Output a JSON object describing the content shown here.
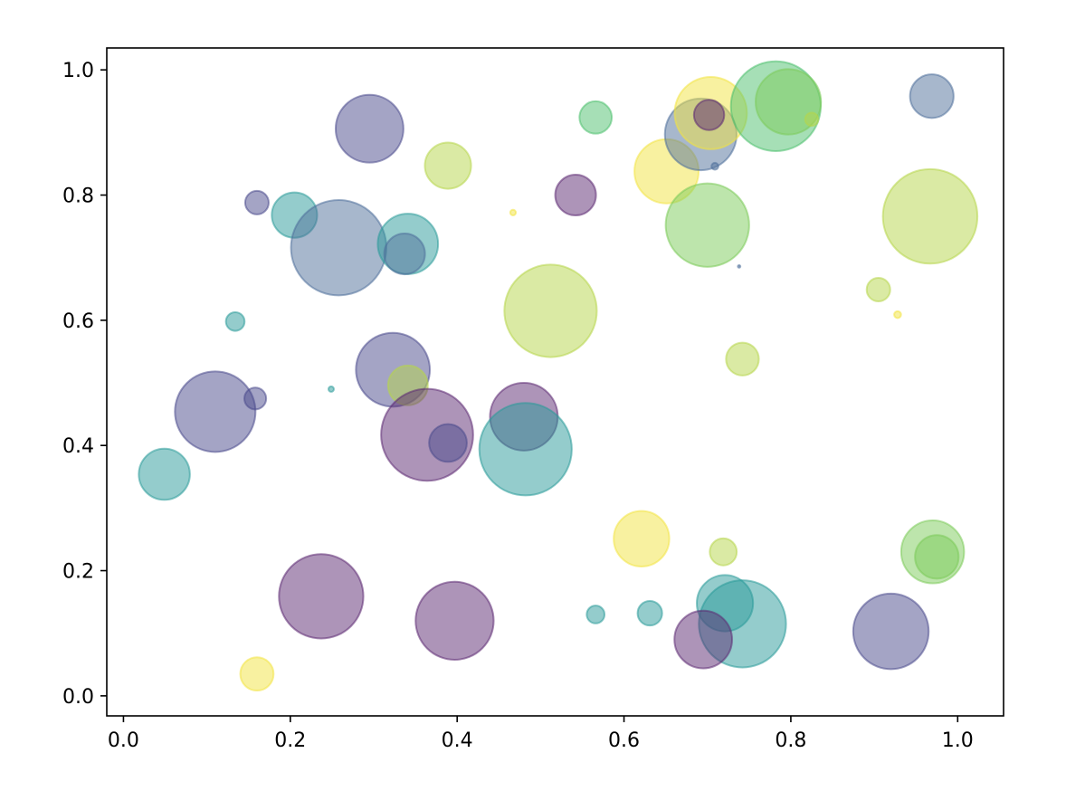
{
  "chart_data": {
    "type": "scatter",
    "xlim": [
      -0.02,
      1.055
    ],
    "ylim": [
      -0.032,
      1.035
    ],
    "x_ticks": [
      {
        "value": 0.0,
        "label": "0.0"
      },
      {
        "value": 0.2,
        "label": "0.2"
      },
      {
        "value": 0.4,
        "label": "0.4"
      },
      {
        "value": 0.6,
        "label": "0.6"
      },
      {
        "value": 0.8,
        "label": "0.8"
      },
      {
        "value": 1.0,
        "label": "1.0"
      }
    ],
    "y_ticks": [
      {
        "value": 0.0,
        "label": "0.0"
      },
      {
        "value": 0.2,
        "label": "0.2"
      },
      {
        "value": 0.4,
        "label": "0.4"
      },
      {
        "value": 0.6,
        "label": "0.6"
      },
      {
        "value": 0.8,
        "label": "0.8"
      },
      {
        "value": 1.0,
        "label": "1.0"
      }
    ],
    "grid": false,
    "marker_alpha": 0.5,
    "colormap": "viridis",
    "colors": {
      "purple": "#5c2a72",
      "indigo": "#4a4a8c",
      "slate": "#4f6f9a",
      "teal": "#2a9a99",
      "green": "#4dc06e",
      "lightgreen": "#7ccb5a",
      "lime": "#b6d64a",
      "yellow": "#f2e442"
    },
    "points": [
      {
        "x": 0.295,
        "y": 0.906,
        "size": 2900,
        "color": "indigo"
      },
      {
        "x": 0.16,
        "y": 0.788,
        "size": 350,
        "color": "indigo"
      },
      {
        "x": 0.205,
        "y": 0.768,
        "size": 1300,
        "color": "teal"
      },
      {
        "x": 0.258,
        "y": 0.716,
        "size": 5750,
        "color": "slate"
      },
      {
        "x": 0.341,
        "y": 0.722,
        "size": 2300,
        "color": "teal"
      },
      {
        "x": 0.337,
        "y": 0.706,
        "size": 1050,
        "color": "slate"
      },
      {
        "x": 0.134,
        "y": 0.598,
        "size": 220,
        "color": "teal"
      },
      {
        "x": 0.389,
        "y": 0.847,
        "size": 1350,
        "color": "lime"
      },
      {
        "x": 0.323,
        "y": 0.521,
        "size": 3450,
        "color": "indigo"
      },
      {
        "x": 0.341,
        "y": 0.496,
        "size": 1000,
        "color": "lime"
      },
      {
        "x": 0.11,
        "y": 0.454,
        "size": 4100,
        "color": "indigo"
      },
      {
        "x": 0.158,
        "y": 0.475,
        "size": 300,
        "color": "indigo"
      },
      {
        "x": 0.249,
        "y": 0.49,
        "size": 18,
        "color": "teal"
      },
      {
        "x": 0.364,
        "y": 0.417,
        "size": 5350,
        "color": "purple"
      },
      {
        "x": 0.389,
        "y": 0.404,
        "size": 900,
        "color": "indigo"
      },
      {
        "x": 0.049,
        "y": 0.354,
        "size": 1650,
        "color": "teal"
      },
      {
        "x": 0.48,
        "y": 0.446,
        "size": 2900,
        "color": "purple"
      },
      {
        "x": 0.482,
        "y": 0.394,
        "size": 5400,
        "color": "teal"
      },
      {
        "x": 0.512,
        "y": 0.615,
        "size": 5400,
        "color": "lime"
      },
      {
        "x": 0.467,
        "y": 0.772,
        "size": 20,
        "color": "yellow"
      },
      {
        "x": 0.542,
        "y": 0.8,
        "size": 1050,
        "color": "purple"
      },
      {
        "x": 0.566,
        "y": 0.924,
        "size": 660,
        "color": "green"
      },
      {
        "x": 0.237,
        "y": 0.159,
        "size": 4500,
        "color": "purple"
      },
      {
        "x": 0.397,
        "y": 0.12,
        "size": 3850,
        "color": "purple"
      },
      {
        "x": 0.16,
        "y": 0.035,
        "size": 700,
        "color": "yellow"
      },
      {
        "x": 0.566,
        "y": 0.13,
        "size": 200,
        "color": "teal"
      },
      {
        "x": 0.631,
        "y": 0.132,
        "size": 380,
        "color": "teal"
      },
      {
        "x": 0.621,
        "y": 0.251,
        "size": 1950,
        "color": "yellow"
      },
      {
        "x": 0.651,
        "y": 0.838,
        "size": 2600,
        "color": "yellow"
      },
      {
        "x": 0.692,
        "y": 0.897,
        "size": 3250,
        "color": "slate"
      },
      {
        "x": 0.704,
        "y": 0.931,
        "size": 3300,
        "color": "yellow"
      },
      {
        "x": 0.702,
        "y": 0.928,
        "size": 580,
        "color": "purple"
      },
      {
        "x": 0.709,
        "y": 0.846,
        "size": 30,
        "color": "slate"
      },
      {
        "x": 0.782,
        "y": 0.942,
        "size": 5100,
        "color": "green"
      },
      {
        "x": 0.797,
        "y": 0.949,
        "size": 2700,
        "color": "lightgreen"
      },
      {
        "x": 0.825,
        "y": 0.921,
        "size": 110,
        "color": "lime"
      },
      {
        "x": 0.7,
        "y": 0.752,
        "size": 4400,
        "color": "lightgreen"
      },
      {
        "x": 0.738,
        "y": 0.686,
        "size": 4,
        "color": "slate"
      },
      {
        "x": 0.742,
        "y": 0.538,
        "size": 680,
        "color": "lime"
      },
      {
        "x": 0.719,
        "y": 0.23,
        "size": 460,
        "color": "lime"
      },
      {
        "x": 0.721,
        "y": 0.148,
        "size": 2000,
        "color": "teal"
      },
      {
        "x": 0.742,
        "y": 0.115,
        "size": 4800,
        "color": "teal"
      },
      {
        "x": 0.695,
        "y": 0.09,
        "size": 2100,
        "color": "purple"
      },
      {
        "x": 0.969,
        "y": 0.958,
        "size": 1200,
        "color": "slate"
      },
      {
        "x": 0.967,
        "y": 0.766,
        "size": 5650,
        "color": "lime"
      },
      {
        "x": 0.905,
        "y": 0.649,
        "size": 350,
        "color": "lime"
      },
      {
        "x": 0.928,
        "y": 0.609,
        "size": 30,
        "color": "yellow"
      },
      {
        "x": 0.97,
        "y": 0.23,
        "size": 2500,
        "color": "lightgreen"
      },
      {
        "x": 0.975,
        "y": 0.222,
        "size": 1200,
        "color": "lightgreen"
      },
      {
        "x": 0.92,
        "y": 0.103,
        "size": 3600,
        "color": "indigo"
      }
    ]
  }
}
